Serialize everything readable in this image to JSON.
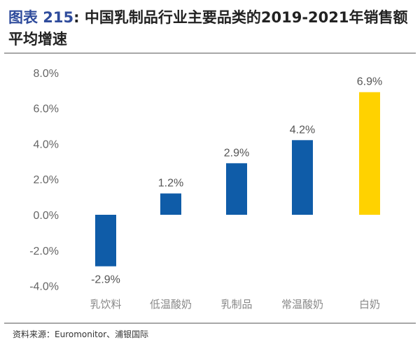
{
  "header": {
    "lead": "图表 215",
    "sep": ": ",
    "title": "中国乳制品行业主要品类的2019-2021年销售额平均增速"
  },
  "footer": {
    "source": "资料来源：Euromonitor、浦银国际"
  },
  "colors": {
    "bar": "#0f5ca8",
    "highlight": "#ffd200",
    "axis_text": "#666666",
    "title_lead": "#2f4c9c"
  },
  "chart_data": {
    "type": "bar",
    "categories": [
      "乳饮料",
      "低温酸奶",
      "乳制品",
      "常温酸奶",
      "白奶"
    ],
    "values": [
      -2.9,
      1.2,
      2.9,
      4.2,
      6.9
    ],
    "data_labels": [
      "-2.9%",
      "1.2%",
      "2.9%",
      "4.2%",
      "6.9%"
    ],
    "highlight_category": "白奶",
    "ylim": [
      -4,
      8
    ],
    "yticks": [
      -4,
      -2,
      0,
      2,
      4,
      6,
      8
    ],
    "ytick_labels": [
      "-4.0%",
      "-2.0%",
      "0.0%",
      "2.0%",
      "4.0%",
      "6.0%",
      "8.0%"
    ],
    "grid": false,
    "legend": "none"
  }
}
